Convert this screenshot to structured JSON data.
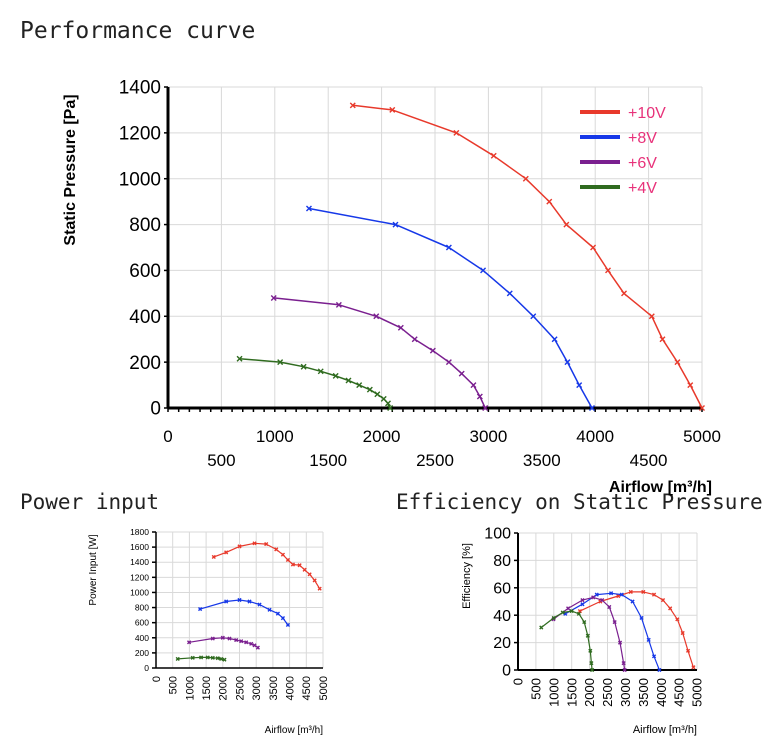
{
  "titles": {
    "performance": "Performance curve",
    "power": "Power input",
    "efficiency": "Efficiency on Static Pressure"
  },
  "colors": {
    "v10": "#e8392b",
    "v8": "#1638e8",
    "v6": "#7a1f8f",
    "v4": "#2f6b1f",
    "legend_text": "#e8327a"
  },
  "chart_data": [
    {
      "id": "performance",
      "type": "line",
      "title": "Performance curve",
      "xlabel": "Airflow [m³/h]",
      "ylabel": "Static Pressure [Pa]",
      "xlim": [
        0,
        5000
      ],
      "ylim": [
        0,
        1400
      ],
      "xticks_top": [
        "0",
        "1000",
        "2000",
        "3000",
        "4000",
        "5000"
      ],
      "xticks_bottom": [
        "500",
        "1500",
        "2500",
        "3500",
        "4500"
      ],
      "yticks": [
        "0",
        "200",
        "400",
        "600",
        "800",
        "1000",
        "1200",
        "1400"
      ],
      "legend": [
        "+10V",
        "+8V",
        "+6V",
        "+4V"
      ],
      "series": [
        {
          "name": "+10V",
          "color": "#e8392b",
          "points": [
            [
              1730,
              1320
            ],
            [
              2100,
              1300
            ],
            [
              2700,
              1200
            ],
            [
              3050,
              1100
            ],
            [
              3350,
              1000
            ],
            [
              3570,
              900
            ],
            [
              3730,
              800
            ],
            [
              3980,
              700
            ],
            [
              4120,
              600
            ],
            [
              4270,
              500
            ],
            [
              4530,
              400
            ],
            [
              4630,
              300
            ],
            [
              4770,
              200
            ],
            [
              4890,
              100
            ],
            [
              5000,
              0
            ]
          ]
        },
        {
          "name": "+8V",
          "color": "#1638e8",
          "points": [
            [
              1320,
              870
            ],
            [
              2130,
              800
            ],
            [
              2630,
              700
            ],
            [
              2950,
              600
            ],
            [
              3200,
              500
            ],
            [
              3420,
              400
            ],
            [
              3620,
              300
            ],
            [
              3740,
              200
            ],
            [
              3850,
              100
            ],
            [
              3970,
              0
            ]
          ]
        },
        {
          "name": "+6V",
          "color": "#7a1f8f",
          "points": [
            [
              990,
              480
            ],
            [
              1600,
              450
            ],
            [
              1950,
              400
            ],
            [
              2180,
              350
            ],
            [
              2310,
              300
            ],
            [
              2480,
              250
            ],
            [
              2630,
              200
            ],
            [
              2750,
              150
            ],
            [
              2860,
              100
            ],
            [
              2920,
              50
            ],
            [
              2970,
              0
            ]
          ]
        },
        {
          "name": "+4V",
          "color": "#2f6b1f",
          "points": [
            [
              670,
              215
            ],
            [
              1050,
              200
            ],
            [
              1270,
              180
            ],
            [
              1430,
              160
            ],
            [
              1570,
              140
            ],
            [
              1690,
              120
            ],
            [
              1790,
              100
            ],
            [
              1890,
              80
            ],
            [
              1960,
              60
            ],
            [
              2020,
              40
            ],
            [
              2060,
              20
            ],
            [
              2080,
              0
            ]
          ]
        }
      ]
    },
    {
      "id": "power",
      "type": "line",
      "title": "Power input",
      "xlabel": "Airflow [m³/h]",
      "ylabel": "Power Input [W]",
      "xlim": [
        0,
        5000
      ],
      "ylim": [
        0,
        1800
      ],
      "xticks": [
        "0",
        "500",
        "1000",
        "1500",
        "2000",
        "2500",
        "3000",
        "3500",
        "4000",
        "4500",
        "5000"
      ],
      "yticks": [
        "0",
        "200",
        "400",
        "600",
        "800",
        "1000",
        "1200",
        "1400",
        "1600",
        "1800"
      ],
      "series": [
        {
          "name": "+10V",
          "color": "#e8392b",
          "points": [
            [
              1730,
              1470
            ],
            [
              2100,
              1530
            ],
            [
              2500,
              1610
            ],
            [
              2950,
              1650
            ],
            [
              3300,
              1640
            ],
            [
              3600,
              1570
            ],
            [
              3800,
              1500
            ],
            [
              3950,
              1430
            ],
            [
              4100,
              1370
            ],
            [
              4300,
              1360
            ],
            [
              4450,
              1300
            ],
            [
              4600,
              1240
            ],
            [
              4750,
              1160
            ],
            [
              4900,
              1050
            ]
          ]
        },
        {
          "name": "+8V",
          "color": "#1638e8",
          "points": [
            [
              1320,
              780
            ],
            [
              2100,
              880
            ],
            [
              2500,
              900
            ],
            [
              2800,
              880
            ],
            [
              3100,
              840
            ],
            [
              3400,
              770
            ],
            [
              3650,
              720
            ],
            [
              3800,
              660
            ],
            [
              3950,
              570
            ]
          ]
        },
        {
          "name": "+6V",
          "color": "#7a1f8f",
          "points": [
            [
              990,
              340
            ],
            [
              1700,
              390
            ],
            [
              2000,
              400
            ],
            [
              2200,
              390
            ],
            [
              2400,
              370
            ],
            [
              2550,
              355
            ],
            [
              2700,
              340
            ],
            [
              2850,
              320
            ],
            [
              2950,
              300
            ],
            [
              3050,
              270
            ]
          ]
        },
        {
          "name": "+4V",
          "color": "#2f6b1f",
          "points": [
            [
              650,
              120
            ],
            [
              1100,
              135
            ],
            [
              1350,
              140
            ],
            [
              1550,
              140
            ],
            [
              1700,
              135
            ],
            [
              1850,
              130
            ],
            [
              1950,
              120
            ],
            [
              2050,
              110
            ]
          ]
        }
      ]
    },
    {
      "id": "efficiency",
      "type": "line",
      "title": "Efficiency on Static Pressure",
      "xlabel": "Airflow [m³/h]",
      "ylabel": "Efficiency [%]",
      "xlim": [
        0,
        5000
      ],
      "ylim": [
        0,
        100
      ],
      "xticks": [
        "0",
        "500",
        "1000",
        "1500",
        "2000",
        "2500",
        "3000",
        "3500",
        "4000",
        "4500",
        "5000"
      ],
      "yticks": [
        "0",
        "20",
        "40",
        "60",
        "80",
        "100"
      ],
      "series": [
        {
          "name": "+10V",
          "color": "#e8392b",
          "points": [
            [
              1730,
              43
            ],
            [
              2300,
              50
            ],
            [
              2800,
              54
            ],
            [
              3150,
              57
            ],
            [
              3500,
              57
            ],
            [
              3800,
              55
            ],
            [
              4050,
              51
            ],
            [
              4250,
              45
            ],
            [
              4450,
              37
            ],
            [
              4600,
              27
            ],
            [
              4750,
              14
            ],
            [
              4900,
              2
            ]
          ]
        },
        {
          "name": "+8V",
          "color": "#1638e8",
          "points": [
            [
              1320,
              41
            ],
            [
              1800,
              48
            ],
            [
              2200,
              55
            ],
            [
              2600,
              56
            ],
            [
              2900,
              55
            ],
            [
              3200,
              50
            ],
            [
              3450,
              38
            ],
            [
              3650,
              22
            ],
            [
              3800,
              10
            ],
            [
              3950,
              0
            ]
          ]
        },
        {
          "name": "+6V",
          "color": "#7a1f8f",
          "points": [
            [
              990,
              37
            ],
            [
              1400,
              45
            ],
            [
              1800,
              51
            ],
            [
              2100,
              53
            ],
            [
              2350,
              51
            ],
            [
              2550,
              46
            ],
            [
              2700,
              35
            ],
            [
              2850,
              20
            ],
            [
              2950,
              5
            ],
            [
              2980,
              0
            ]
          ]
        },
        {
          "name": "+4V",
          "color": "#2f6b1f",
          "points": [
            [
              650,
              31
            ],
            [
              1000,
              38
            ],
            [
              1250,
              42
            ],
            [
              1500,
              43
            ],
            [
              1700,
              41
            ],
            [
              1850,
              35
            ],
            [
              1950,
              25
            ],
            [
              2020,
              14
            ],
            [
              2050,
              5
            ],
            [
              2070,
              0
            ]
          ]
        }
      ]
    }
  ]
}
